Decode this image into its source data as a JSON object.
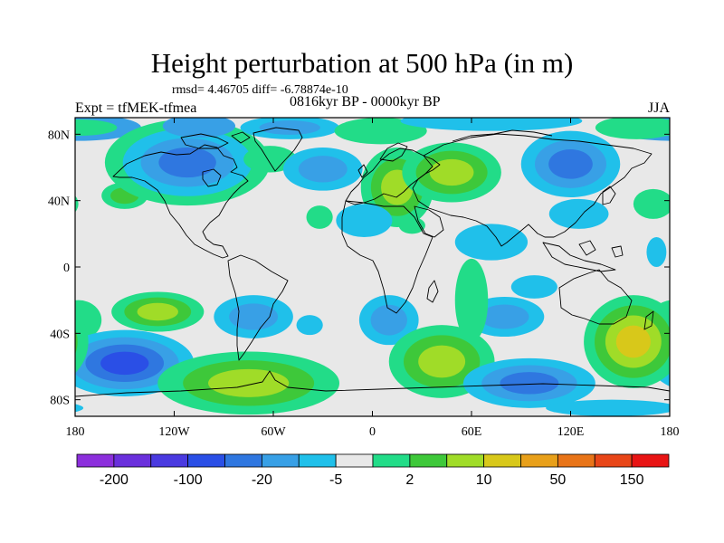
{
  "title": "Height perturbation at 500 hPa (in m)",
  "stats": "rmsd= 4.46705 diff= -6.78874e-10",
  "experiment": "Expt = tfMEK-tfmea",
  "period": "0816kyr BP - 0000kyr BP",
  "season": "JJA",
  "map": {
    "projection": "cylindrical-equidistant",
    "lon_range": [
      -180,
      180
    ],
    "lat_range": [
      -90,
      90
    ],
    "background_color": "#e8e8e8",
    "coastlines": true
  },
  "axes": {
    "y_ticks": [
      {
        "lat": 80,
        "label": "80N"
      },
      {
        "lat": 40,
        "label": "40N"
      },
      {
        "lat": 0,
        "label": "0"
      },
      {
        "lat": -40,
        "label": "40S"
      },
      {
        "lat": -80,
        "label": "80S"
      }
    ],
    "x_ticks": [
      {
        "lon": -180,
        "label": "180"
      },
      {
        "lon": -120,
        "label": "120W"
      },
      {
        "lon": -60,
        "label": "60W"
      },
      {
        "lon": 0,
        "label": "0"
      },
      {
        "lon": 60,
        "label": "60E"
      },
      {
        "lon": 120,
        "label": "120E"
      },
      {
        "lon": 180,
        "label": "180"
      }
    ]
  },
  "colorbar": {
    "colors": [
      "#8c2fdc",
      "#6a30dc",
      "#4a3ae0",
      "#2a4fe6",
      "#2f77e0",
      "#38a0e6",
      "#20c0ea",
      "#e8e8e8",
      "#22dc88",
      "#3ec83a",
      "#a0dc28",
      "#d8c81a",
      "#e8a01a",
      "#e87418",
      "#e84618",
      "#e81414"
    ],
    "labels": [
      {
        "boundary": 1,
        "text": "-200"
      },
      {
        "boundary": 3,
        "text": "-100"
      },
      {
        "boundary": 5,
        "text": "-20"
      },
      {
        "boundary": 7,
        "text": "-5"
      },
      {
        "boundary": 9,
        "text": "2"
      },
      {
        "boundary": 11,
        "text": "10"
      },
      {
        "boundary": 13,
        "text": "50"
      },
      {
        "boundary": 15,
        "text": "150"
      }
    ]
  },
  "anomaly_regions": [
    {
      "lon": -178,
      "lat": 84,
      "rlon": 38,
      "rlat": 8,
      "levels": [
        "#38a0e6",
        "#22dc88"
      ]
    },
    {
      "lon": -150,
      "lat": 43,
      "rlon": 14,
      "rlat": 8,
      "levels": [
        "#22dc88",
        "#3ec83a"
      ]
    },
    {
      "lon": -112,
      "lat": 63,
      "rlon": 50,
      "rlat": 26,
      "levels": [
        "#22dc88",
        "#20c0ea",
        "#38a0e6",
        "#2f77e0"
      ]
    },
    {
      "lon": -105,
      "lat": 85,
      "rlon": 22,
      "rlat": 7,
      "levels": [
        "#38a0e6"
      ]
    },
    {
      "lon": -62,
      "lat": 65,
      "rlon": 16,
      "rlat": 8,
      "levels": [
        "#22dc88"
      ]
    },
    {
      "lon": -50,
      "lat": 84,
      "rlon": 30,
      "rlat": 7,
      "levels": [
        "#20c0ea",
        "#38a0e6"
      ]
    },
    {
      "lon": -30,
      "lat": 59,
      "rlon": 24,
      "rlat": 13,
      "levels": [
        "#20c0ea",
        "#38a0e6"
      ]
    },
    {
      "lon": -32,
      "lat": 30,
      "rlon": 8,
      "rlat": 7,
      "levels": [
        "#22dc88"
      ]
    },
    {
      "lon": 5,
      "lat": 82,
      "rlon": 28,
      "rlat": 8,
      "levels": [
        "#22dc88"
      ]
    },
    {
      "lon": 15,
      "lat": 48,
      "rlon": 22,
      "rlat": 24,
      "levels": [
        "#22dc88",
        "#3ec83a",
        "#a0dc28"
      ]
    },
    {
      "lon": -5,
      "lat": 28,
      "rlon": 17,
      "rlat": 10,
      "levels": [
        "#20c0ea"
      ]
    },
    {
      "lon": 24,
      "lat": 25,
      "rlon": 8,
      "rlat": 5,
      "levels": [
        "#22dc88"
      ]
    },
    {
      "lon": 72,
      "lat": 88,
      "rlon": 55,
      "rlat": 6,
      "levels": [
        "#20c0ea"
      ]
    },
    {
      "lon": 48,
      "lat": 57,
      "rlon": 30,
      "rlat": 18,
      "levels": [
        "#22dc88",
        "#3ec83a",
        "#a0dc28"
      ]
    },
    {
      "lon": 120,
      "lat": 62,
      "rlon": 30,
      "rlat": 20,
      "levels": [
        "#20c0ea",
        "#38a0e6",
        "#2f77e0"
      ]
    },
    {
      "lon": 160,
      "lat": 84,
      "rlon": 25,
      "rlat": 7,
      "levels": [
        "#22dc88"
      ]
    },
    {
      "lon": 72,
      "lat": 15,
      "rlon": 22,
      "rlat": 11,
      "levels": [
        "#20c0ea"
      ]
    },
    {
      "lon": 125,
      "lat": 32,
      "rlon": 18,
      "rlat": 9,
      "levels": [
        "#20c0ea"
      ]
    },
    {
      "lon": 170,
      "lat": 38,
      "rlon": 12,
      "rlat": 9,
      "levels": [
        "#22dc88"
      ]
    },
    {
      "lon": 172,
      "lat": 9,
      "rlon": 6,
      "rlat": 9,
      "levels": [
        "#20c0ea"
      ]
    },
    {
      "lon": 98,
      "lat": -12,
      "rlon": 14,
      "rlat": 7,
      "levels": [
        "#20c0ea"
      ]
    },
    {
      "lon": -178,
      "lat": -32,
      "rlon": 14,
      "rlat": 12,
      "levels": [
        "#22dc88"
      ]
    },
    {
      "lon": -130,
      "lat": -27,
      "rlon": 28,
      "rlat": 12,
      "levels": [
        "#22dc88",
        "#3ec83a",
        "#a0dc28"
      ]
    },
    {
      "lon": -72,
      "lat": -30,
      "rlon": 24,
      "rlat": 13,
      "levels": [
        "#20c0ea",
        "#38a0e6"
      ]
    },
    {
      "lon": -38,
      "lat": -35,
      "rlon": 8,
      "rlat": 6,
      "levels": [
        "#20c0ea"
      ]
    },
    {
      "lon": 10,
      "lat": -32,
      "rlon": 18,
      "rlat": 15,
      "levels": [
        "#20c0ea",
        "#38a0e6"
      ]
    },
    {
      "lon": 80,
      "lat": -30,
      "rlon": 24,
      "rlat": 12,
      "levels": [
        "#20c0ea",
        "#38a0e6"
      ]
    },
    {
      "lon": -150,
      "lat": -58,
      "rlon": 42,
      "rlat": 20,
      "levels": [
        "#20c0ea",
        "#38a0e6",
        "#2f77e0",
        "#2a4fe6"
      ]
    },
    {
      "lon": -75,
      "lat": -70,
      "rlon": 55,
      "rlat": 19,
      "levels": [
        "#22dc88",
        "#3ec83a",
        "#a0dc28"
      ]
    },
    {
      "lon": 42,
      "lat": -57,
      "rlon": 32,
      "rlat": 22,
      "levels": [
        "#22dc88",
        "#3ec83a",
        "#a0dc28"
      ]
    },
    {
      "lon": 60,
      "lat": -20,
      "rlon": 10,
      "rlat": 25,
      "levels": [
        "#22dc88"
      ]
    },
    {
      "lon": 95,
      "lat": -70,
      "rlon": 40,
      "rlat": 15,
      "levels": [
        "#20c0ea",
        "#38a0e6",
        "#2f77e0"
      ]
    },
    {
      "lon": 158,
      "lat": -45,
      "rlon": 30,
      "rlat": 28,
      "levels": [
        "#22dc88",
        "#3ec83a",
        "#a0dc28",
        "#d8c81a"
      ]
    },
    {
      "lon": 145,
      "lat": -85,
      "rlon": 40,
      "rlat": 5,
      "levels": [
        "#20c0ea"
      ]
    }
  ]
}
